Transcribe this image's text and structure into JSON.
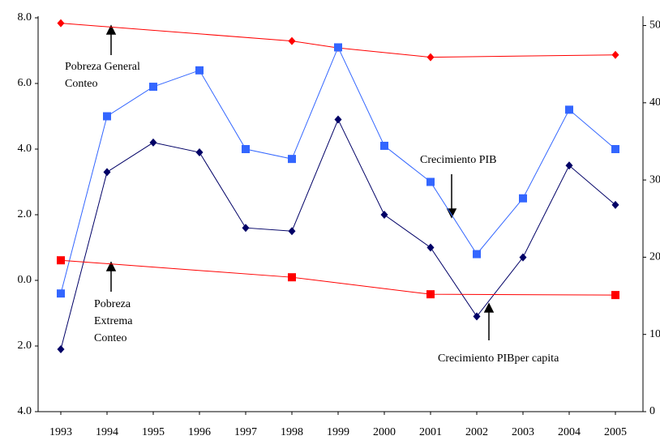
{
  "chart_data": {
    "type": "line",
    "xlim": [
      1993,
      2005
    ],
    "xticks": [
      1993,
      1994,
      1995,
      1996,
      1997,
      1998,
      1999,
      2000,
      2001,
      2002,
      2003,
      2004,
      2005
    ],
    "ylim": [
      -4,
      8
    ],
    "yticks": [
      {
        "value": 8,
        "label": "8.0"
      },
      {
        "value": 6,
        "label": "6.0"
      },
      {
        "value": 4,
        "label": "4.0"
      },
      {
        "value": 2,
        "label": "2.0"
      },
      {
        "value": 0,
        "label": "0.0"
      },
      {
        "value": -2,
        "label": "2.0"
      },
      {
        "value": -4,
        "label": "4.0"
      }
    ],
    "y2lim": [
      0,
      51
    ],
    "y2ticks": [
      0,
      10,
      20,
      30,
      40,
      50
    ],
    "series": [
      {
        "color": "#ff0000",
        "marker": "diamond",
        "axis": "y2",
        "x": [
          1993,
          1998,
          1999,
          2001,
          2005
        ],
        "values": [
          50.3,
          48.0,
          47.1,
          45.9,
          46.2
        ]
      },
      {
        "color": "#3366ff",
        "marker": "square",
        "x": [
          1993,
          1994,
          1995,
          1996,
          1997,
          1998,
          1999,
          2000,
          2001,
          2002,
          2003,
          2004,
          2005
        ],
        "values": [
          -0.4,
          5.0,
          5.9,
          6.4,
          4.0,
          3.7,
          7.1,
          4.1,
          3.0,
          0.8,
          2.5,
          5.2,
          4.0
        ]
      },
      {
        "color": "#000066",
        "marker": "diamond",
        "x": [
          1993,
          1994,
          1995,
          1996,
          1997,
          1998,
          1999,
          2000,
          2001,
          2002,
          2003,
          2004,
          2005
        ],
        "values": [
          -2.1,
          3.3,
          4.2,
          3.9,
          1.6,
          1.5,
          4.9,
          2.0,
          1.0,
          -1.1,
          0.7,
          3.5,
          2.3
        ]
      },
      {
        "color": "#ff0000",
        "marker": "square",
        "axis": "y2",
        "x": [
          1993,
          1998,
          2001,
          2005
        ],
        "values": [
          19.6,
          17.4,
          15.2,
          15.1
        ]
      }
    ],
    "annotations": [
      {
        "lines": [
          "Pobreza General",
          "Conteo"
        ]
      },
      {
        "lines": [
          "Crecimiento PIB"
        ]
      },
      {
        "lines": [
          "Pobreza",
          "Extrema",
          "Conteo"
        ]
      },
      {
        "lines": [
          "Crecimiento PIBper capita"
        ]
      }
    ]
  }
}
